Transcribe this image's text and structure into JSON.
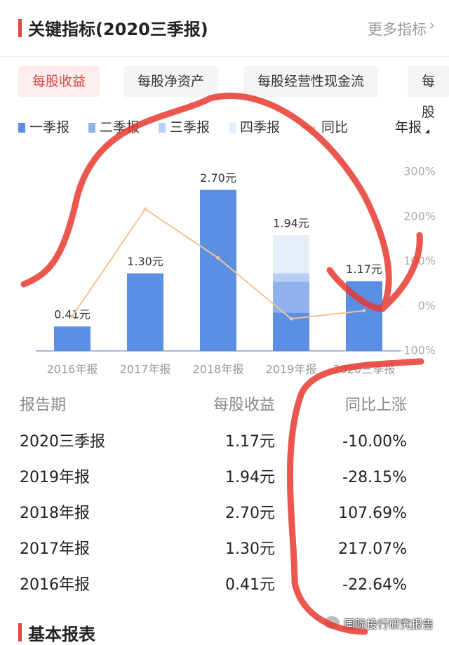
{
  "header": {
    "title": "关键指标(2020三季报)",
    "more": "更多指标"
  },
  "tabs": [
    "每股收益",
    "每股净资产",
    "每股经营性现金流",
    "每股"
  ],
  "chart_data": {
    "type": "bar",
    "period_selector": "年报",
    "categories": [
      "2016年报",
      "2017年报",
      "2018年报",
      "2019年报",
      "2020三季报"
    ],
    "series": [
      {
        "name": "一季报",
        "color": "#5b8fe4",
        "values": [
          0.41,
          1.3,
          2.7,
          0.64,
          1.17
        ]
      },
      {
        "name": "二季报",
        "color": "#8fb2ee",
        "values": [
          null,
          null,
          null,
          0.52,
          null
        ]
      },
      {
        "name": "三季报",
        "color": "#b8cff5",
        "values": [
          null,
          null,
          null,
          0.14,
          null
        ]
      },
      {
        "name": "四季报",
        "color": "#e6eefb",
        "values": [
          null,
          null,
          null,
          0.64,
          null
        ]
      },
      {
        "name": "同比",
        "type": "line",
        "axis": "y2",
        "color": "#f3c394",
        "values": [
          -22.64,
          217.07,
          107.69,
          -28.15,
          -10.0
        ]
      }
    ],
    "bar_totals": [
      0.41,
      1.3,
      2.7,
      1.94,
      1.17
    ],
    "bar_total_labels": [
      "0.41元",
      "1.30元",
      "2.70元",
      "1.94元",
      "1.17元"
    ],
    "ylim": [
      0,
      3
    ],
    "y2lim": [
      -100,
      300
    ],
    "y2ticks": [
      {
        "value": -100,
        "label": "-100%"
      },
      {
        "value": 0,
        "label": "0%"
      },
      {
        "value": 100,
        "label": "100%"
      },
      {
        "value": 200,
        "label": "200%"
      },
      {
        "value": 300,
        "label": "300%"
      }
    ],
    "grid": false
  },
  "table": {
    "columns": [
      "报告期",
      "每股收益",
      "同比上涨"
    ],
    "rows": [
      [
        "2020三季报",
        "1.17元",
        "-10.00%"
      ],
      [
        "2019年报",
        "1.94元",
        "-28.15%"
      ],
      [
        "2018年报",
        "2.70元",
        "107.69%"
      ],
      [
        "2017年报",
        "1.30元",
        "217.07%"
      ],
      [
        "2016年报",
        "0.41元",
        "-22.64%"
      ]
    ]
  },
  "section": "基本报表",
  "watermark": "国际投行研究报告"
}
